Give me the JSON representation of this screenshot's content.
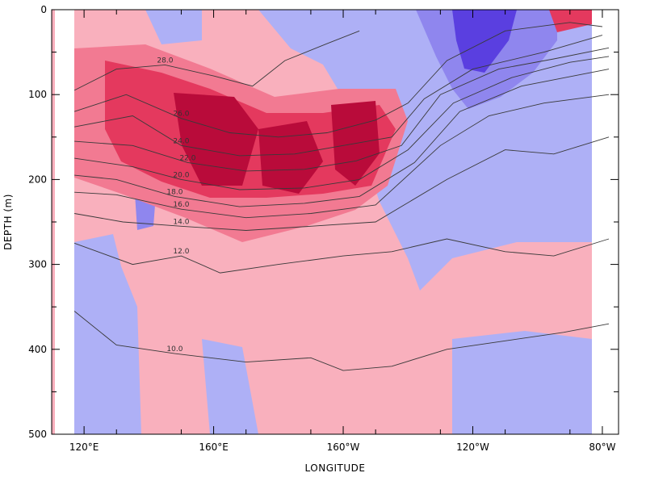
{
  "chart_data": {
    "type": "heatmap",
    "xlabel": "LONGITUDE",
    "ylabel": "DEPTH (m)",
    "x_ticks": [
      {
        "value": 120,
        "label": "120°E"
      },
      {
        "value": 160,
        "label": "160°E"
      },
      {
        "value": 200,
        "label": "160°W"
      },
      {
        "value": 240,
        "label": "120°W"
      },
      {
        "value": 280,
        "label": "80°W"
      }
    ],
    "y_ticks": [
      {
        "value": 0,
        "label": "0"
      },
      {
        "value": 100,
        "label": "100"
      },
      {
        "value": 200,
        "label": "200"
      },
      {
        "value": 300,
        "label": "300"
      },
      {
        "value": 400,
        "label": "400"
      },
      {
        "value": 500,
        "label": "500"
      }
    ],
    "xlim": [
      110,
      285
    ],
    "ylim": [
      0,
      500
    ],
    "y_inverted": true,
    "colors": {
      "neg_strong": "#5a3fe0",
      "neg_mid": "#8f86ee",
      "neg_light": "#aeb0f6",
      "pos_light": "#f9b0bd",
      "pos_mid": "#f27a92",
      "pos_strong": "#e4395e",
      "pos_max": "#b90b3a",
      "contour_line": "#3a3a3a"
    },
    "isotherms": [
      {
        "label": "28.0",
        "points": [
          [
            117,
            95
          ],
          [
            130,
            70
          ],
          [
            145,
            65
          ],
          [
            160,
            78
          ],
          [
            172,
            90
          ],
          [
            182,
            60
          ],
          [
            195,
            40
          ],
          [
            205,
            25
          ]
        ]
      },
      {
        "label": "26.0",
        "points": [
          [
            117,
            120
          ],
          [
            133,
            100
          ],
          [
            150,
            128
          ],
          [
            165,
            145
          ],
          [
            180,
            150
          ],
          [
            195,
            145
          ],
          [
            210,
            130
          ],
          [
            220,
            110
          ],
          [
            232,
            60
          ],
          [
            250,
            25
          ],
          [
            270,
            15
          ],
          [
            280,
            20
          ]
        ]
      },
      {
        "label": "24.0",
        "points": [
          [
            117,
            138
          ],
          [
            135,
            125
          ],
          [
            150,
            160
          ],
          [
            168,
            172
          ],
          [
            185,
            170
          ],
          [
            200,
            160
          ],
          [
            215,
            150
          ],
          [
            225,
            105
          ],
          [
            240,
            70
          ],
          [
            262,
            50
          ],
          [
            280,
            30
          ]
        ]
      },
      {
        "label": "22.0",
        "points": [
          [
            117,
            155
          ],
          [
            135,
            160
          ],
          [
            152,
            180
          ],
          [
            170,
            190
          ],
          [
            188,
            188
          ],
          [
            204,
            178
          ],
          [
            218,
            160
          ],
          [
            230,
            100
          ],
          [
            248,
            70
          ],
          [
            265,
            58
          ],
          [
            282,
            45
          ]
        ]
      },
      {
        "label": "20.0",
        "points": [
          [
            117,
            175
          ],
          [
            135,
            185
          ],
          [
            150,
            200
          ],
          [
            168,
            212
          ],
          [
            188,
            210
          ],
          [
            205,
            200
          ],
          [
            220,
            165
          ],
          [
            234,
            110
          ],
          [
            252,
            80
          ],
          [
            270,
            62
          ],
          [
            282,
            55
          ]
        ]
      },
      {
        "label": "18.0",
        "points": [
          [
            117,
            195
          ],
          [
            130,
            200
          ],
          [
            148,
            220
          ],
          [
            168,
            232
          ],
          [
            188,
            228
          ],
          [
            205,
            220
          ],
          [
            222,
            180
          ],
          [
            236,
            120
          ],
          [
            255,
            90
          ],
          [
            282,
            70
          ]
        ]
      },
      {
        "label": "16.0",
        "points": [
          [
            117,
            215
          ],
          [
            130,
            218
          ],
          [
            150,
            235
          ],
          [
            170,
            245
          ],
          [
            190,
            240
          ],
          [
            210,
            230
          ],
          [
            230,
            160
          ],
          [
            245,
            125
          ],
          [
            262,
            110
          ],
          [
            282,
            100
          ]
        ]
      },
      {
        "label": "14.0",
        "points": [
          [
            117,
            240
          ],
          [
            132,
            250
          ],
          [
            150,
            255
          ],
          [
            170,
            260
          ],
          [
            190,
            255
          ],
          [
            210,
            250
          ],
          [
            232,
            200
          ],
          [
            250,
            165
          ],
          [
            265,
            170
          ],
          [
            282,
            150
          ]
        ]
      },
      {
        "label": "12.0",
        "points": [
          [
            117,
            275
          ],
          [
            135,
            300
          ],
          [
            150,
            290
          ],
          [
            162,
            310
          ],
          [
            180,
            300
          ],
          [
            200,
            290
          ],
          [
            215,
            285
          ],
          [
            232,
            270
          ],
          [
            250,
            285
          ],
          [
            265,
            290
          ],
          [
            282,
            270
          ]
        ]
      },
      {
        "label": "10.0",
        "points": [
          [
            117,
            355
          ],
          [
            130,
            395
          ],
          [
            148,
            405
          ],
          [
            170,
            415
          ],
          [
            190,
            410
          ],
          [
            200,
            425
          ],
          [
            215,
            420
          ],
          [
            232,
            400
          ],
          [
            250,
            390
          ],
          [
            268,
            380
          ],
          [
            282,
            370
          ]
        ]
      }
    ]
  }
}
